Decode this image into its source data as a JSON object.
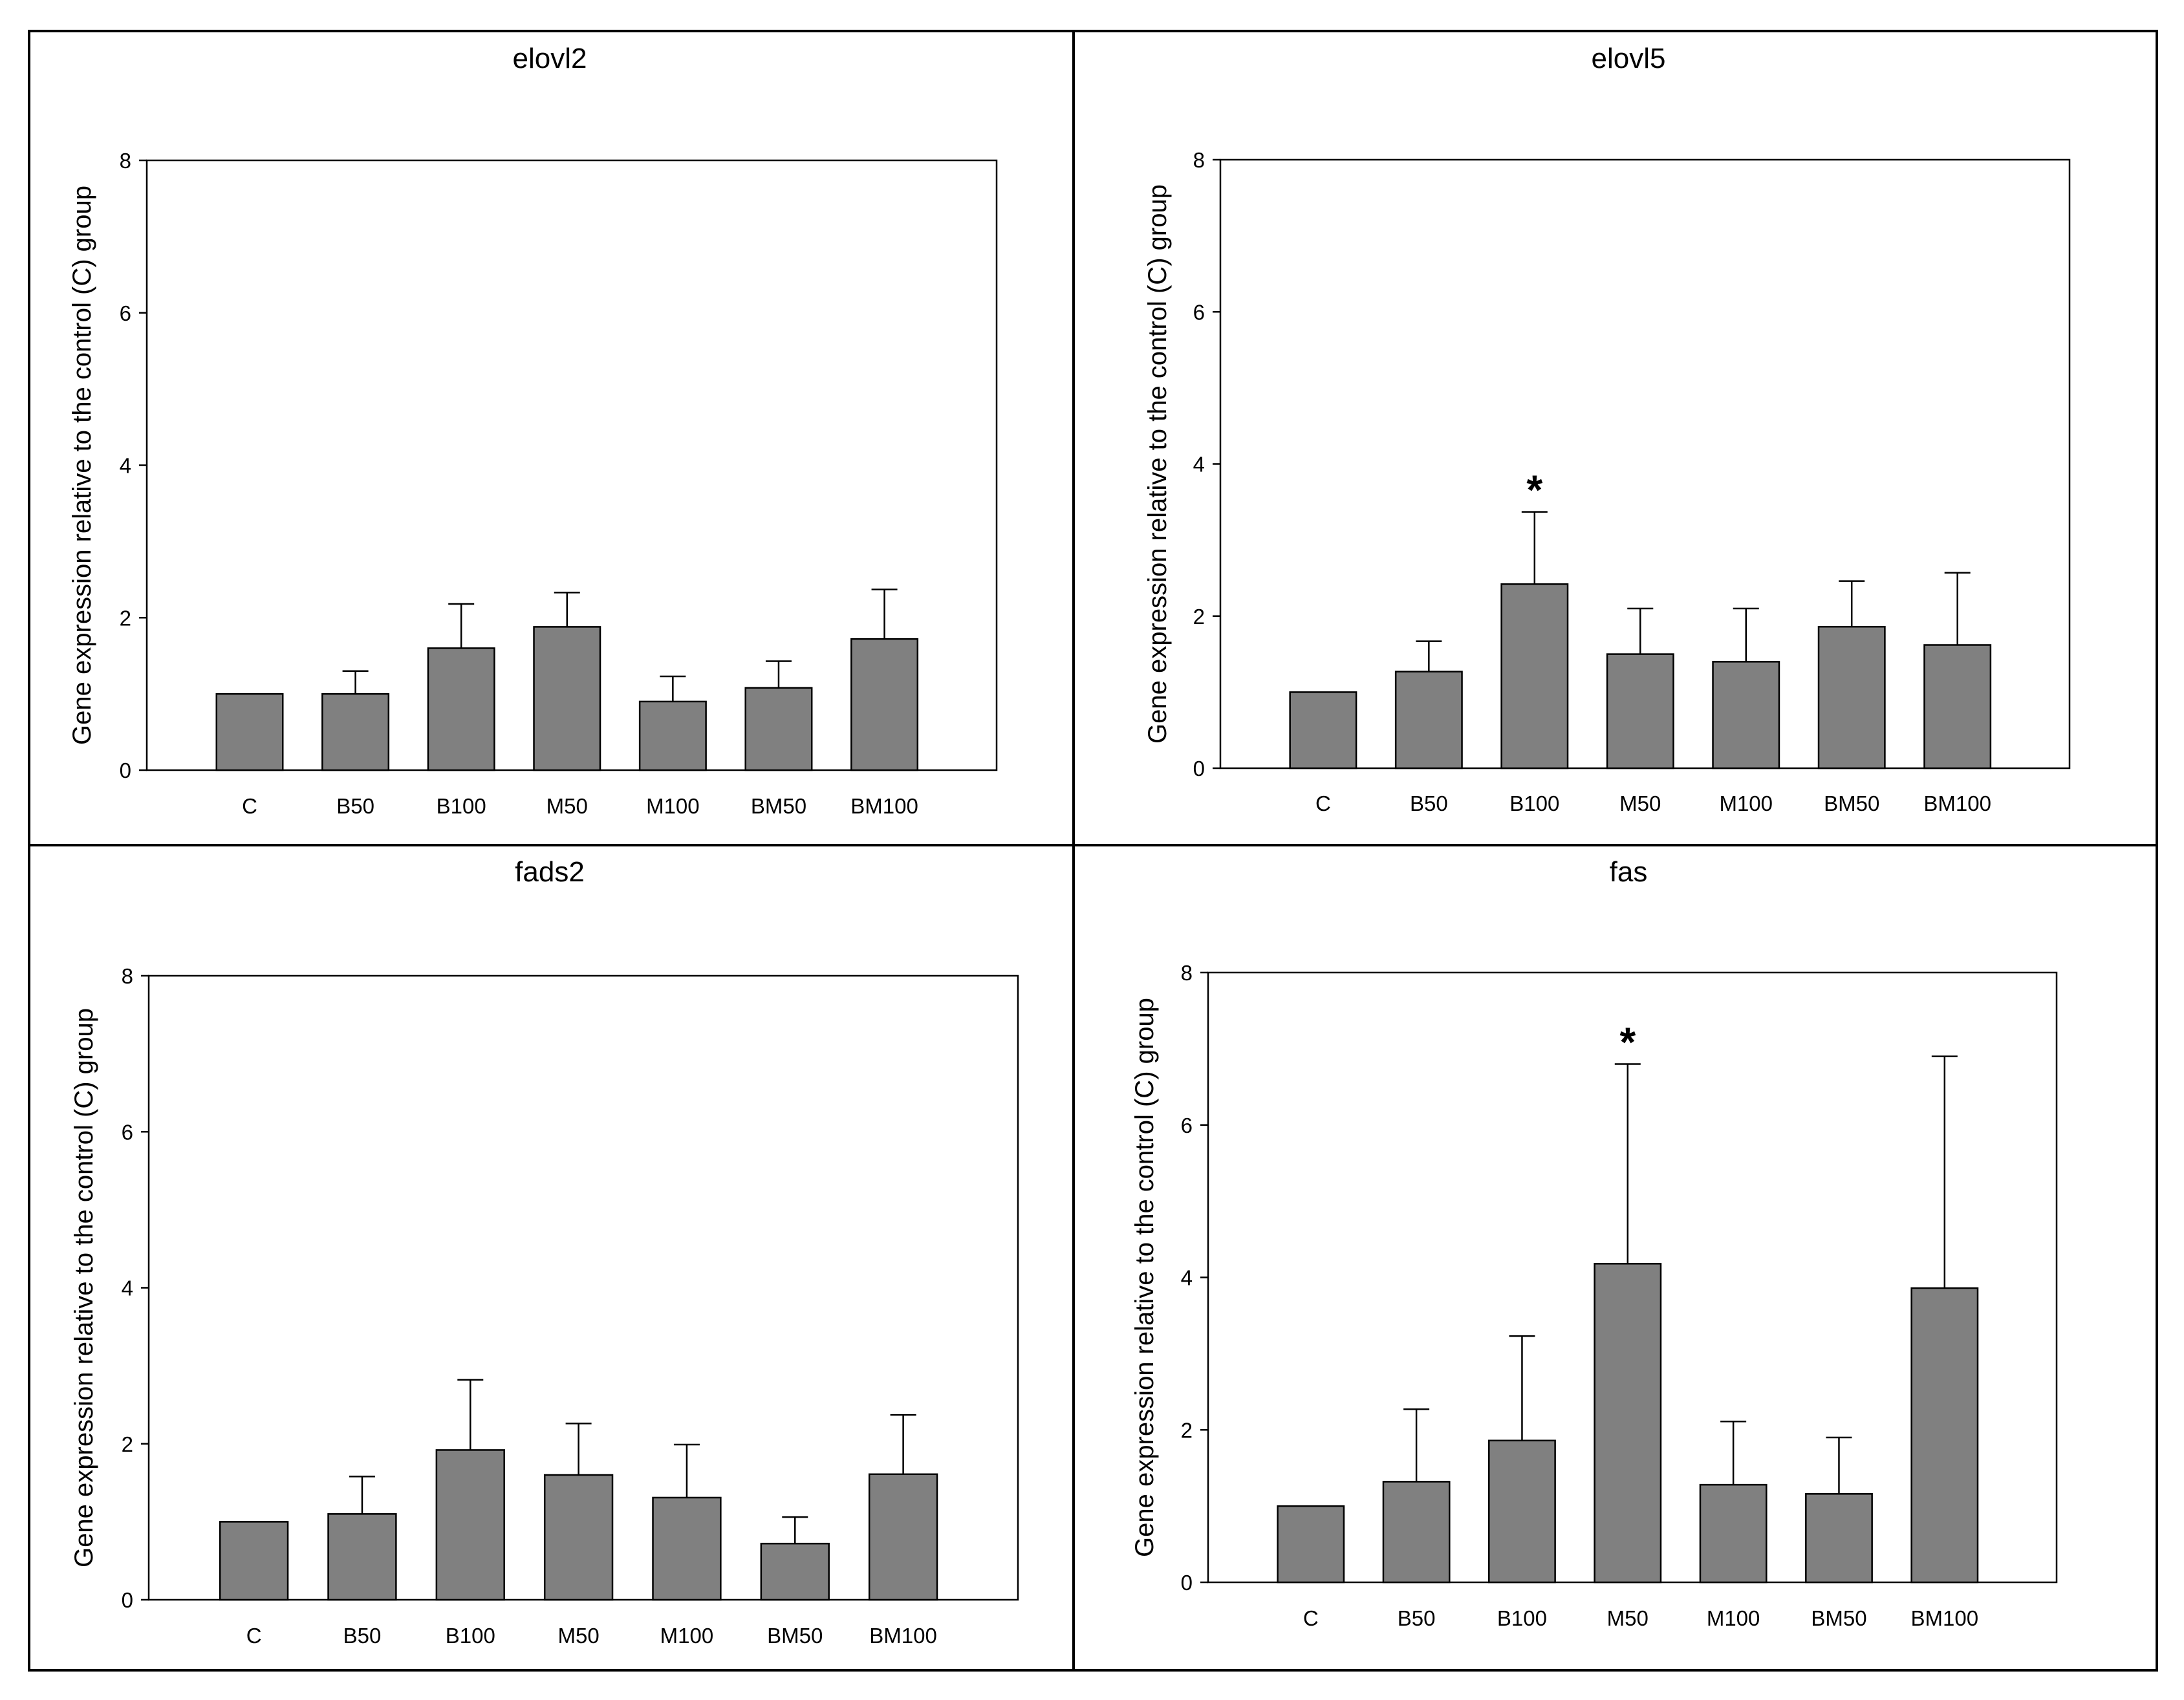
{
  "chart_data": [
    {
      "type": "bar",
      "title": "elovl2",
      "ylabel": "Gene expression relative to the control (C) group",
      "xlabel": "",
      "ylim": [
        0,
        8
      ],
      "yticks": [
        0,
        2,
        4,
        6,
        8
      ],
      "categories": [
        "C",
        "B50",
        "B100",
        "M50",
        "M100",
        "BM50",
        "BM100"
      ],
      "values": [
        1.0,
        1.0,
        1.6,
        1.88,
        0.9,
        1.08,
        1.72
      ],
      "errors": [
        0.0,
        0.3,
        0.58,
        0.45,
        0.33,
        0.35,
        0.65
      ],
      "significance": [
        "",
        "",
        "",
        "",
        "",
        "",
        ""
      ],
      "bar_color": "#808080"
    },
    {
      "type": "bar",
      "title": "elovl5",
      "ylabel": "Gene expression relative to the control (C) group",
      "xlabel": "",
      "ylim": [
        0,
        8
      ],
      "yticks": [
        0,
        2,
        4,
        6,
        8
      ],
      "categories": [
        "C",
        "B50",
        "B100",
        "M50",
        "M100",
        "BM50",
        "BM100"
      ],
      "values": [
        1.0,
        1.27,
        2.42,
        1.5,
        1.4,
        1.86,
        1.62
      ],
      "errors": [
        0.0,
        0.4,
        0.95,
        0.6,
        0.7,
        0.6,
        0.95
      ],
      "significance": [
        "",
        "",
        "*",
        "",
        "",
        "",
        ""
      ],
      "bar_color": "#808080"
    },
    {
      "type": "bar",
      "title": "fads2",
      "ylabel": "Gene expression relative to the control (C) group",
      "xlabel": "",
      "ylim": [
        0,
        8
      ],
      "yticks": [
        0,
        2,
        4,
        6,
        8
      ],
      "categories": [
        "C",
        "B50",
        "B100",
        "M50",
        "M100",
        "BM50",
        "BM100"
      ],
      "values": [
        1.0,
        1.1,
        1.92,
        1.6,
        1.31,
        0.72,
        1.61
      ],
      "errors": [
        0.0,
        0.48,
        0.9,
        0.66,
        0.68,
        0.34,
        0.76
      ],
      "significance": [
        "",
        "",
        "",
        "",
        "",
        "",
        ""
      ],
      "bar_color": "#808080"
    },
    {
      "type": "bar",
      "title": "fas",
      "ylabel": "Gene expression relative to the control (C) group",
      "xlabel": "",
      "ylim": [
        0,
        8
      ],
      "yticks": [
        0,
        2,
        4,
        6,
        8
      ],
      "categories": [
        "C",
        "B50",
        "B100",
        "M50",
        "M100",
        "BM50",
        "BM100"
      ],
      "values": [
        1.0,
        1.32,
        1.86,
        4.18,
        1.28,
        1.16,
        3.86
      ],
      "errors": [
        0.0,
        0.95,
        1.37,
        2.62,
        0.83,
        0.74,
        3.04
      ],
      "significance": [
        "",
        "",
        "",
        "*",
        "",
        "",
        ""
      ],
      "bar_color": "#808080"
    }
  ]
}
